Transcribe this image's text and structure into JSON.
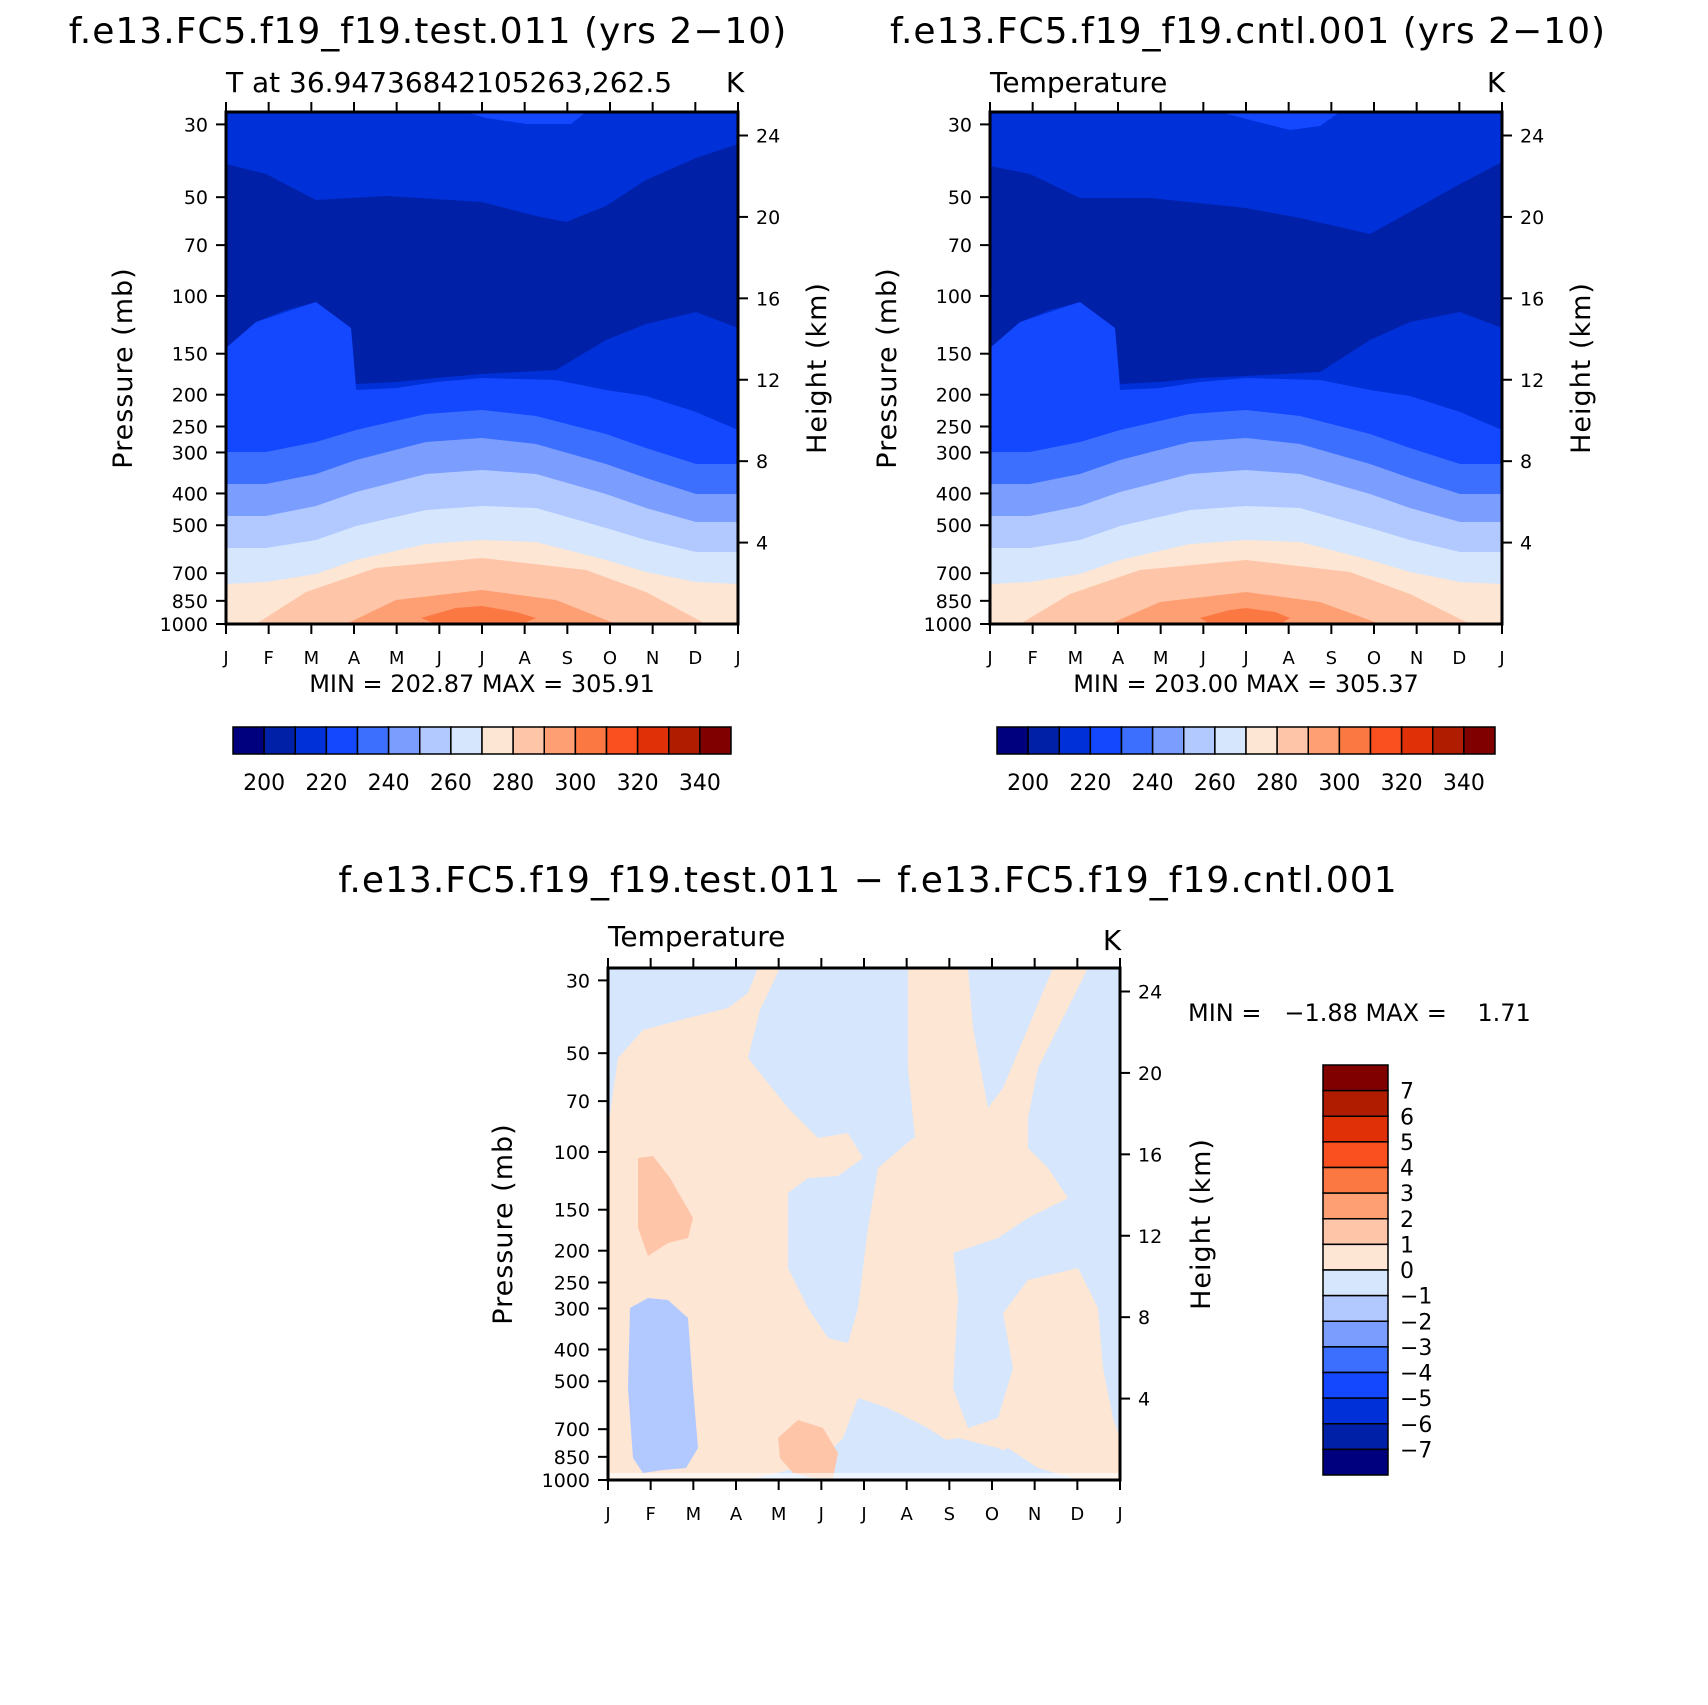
{
  "top_left": {
    "title": "f.e13.FC5.f19_f19.test.011 (yrs 2−10)",
    "subtitle": "T at 36.94736842105263,262.5",
    "units": "K",
    "stats": "MIN = 202.87 MAX = 305.91"
  },
  "top_right": {
    "title": "f.e13.FC5.f19_f19.cntl.001 (yrs 2−10)",
    "subtitle": "Temperature",
    "units": "K",
    "stats": "MIN = 203.00 MAX = 305.37"
  },
  "bottom": {
    "title": "f.e13.FC5.f19_f19.test.011 − f.e13.FC5.f19_f19.cntl.001",
    "subtitle": "Temperature",
    "units": "K",
    "stats": "MIN =   −1.88 MAX =    1.71"
  },
  "axes": {
    "ylabel_left": "Pressure (mb)",
    "ylabel_right": "Height (km)",
    "months": [
      "J",
      "F",
      "M",
      "A",
      "M",
      "J",
      "J",
      "A",
      "S",
      "O",
      "N",
      "D",
      "J"
    ],
    "pressure_ticks": [
      "30",
      "50",
      "70",
      "100",
      "150",
      "200",
      "250",
      "300",
      "400",
      "500",
      "700",
      "850",
      "1000"
    ],
    "height_ticks": [
      "24",
      "20",
      "16",
      "12",
      "8",
      "4"
    ]
  },
  "colorbar_abs": {
    "labels": [
      "200",
      "220",
      "240",
      "260",
      "280",
      "300",
      "320",
      "340"
    ],
    "colors": [
      "#00007f",
      "#0020a8",
      "#0030d8",
      "#1448ff",
      "#3c6ffe",
      "#7b9efe",
      "#b2c9ff",
      "#d5e6fd",
      "#fde6d4",
      "#fec5a8",
      "#fd9f72",
      "#fb7843",
      "#fa5020",
      "#e03008",
      "#b01c00",
      "#800000"
    ]
  },
  "colorbar_diff": {
    "labels": [
      "7",
      "6",
      "5",
      "4",
      "3",
      "2",
      "1",
      "0",
      "−1",
      "−2",
      "−3",
      "−4",
      "−5",
      "−6",
      "−7"
    ],
    "colors": [
      "#800000",
      "#b01c00",
      "#e03008",
      "#fa5020",
      "#fb7843",
      "#fd9f72",
      "#fec5a8",
      "#fde6d4",
      "#d5e6fd",
      "#b2c9ff",
      "#7b9efe",
      "#3c6ffe",
      "#1448ff",
      "#0030d8",
      "#0020a8",
      "#00007f"
    ]
  },
  "chart_data": [
    {
      "type": "heatmap",
      "panel": "test.011",
      "x": [
        "J",
        "F",
        "M",
        "A",
        "M",
        "J",
        "J",
        "A",
        "S",
        "O",
        "N",
        "D",
        "J"
      ],
      "y_pressure_mb": [
        30,
        50,
        70,
        100,
        150,
        200,
        250,
        300,
        400,
        500,
        700,
        850,
        1000
      ],
      "units": "K",
      "min": 202.87,
      "max": 305.91,
      "contour_levels": [
        200,
        210,
        220,
        230,
        240,
        250,
        260,
        270,
        280,
        290,
        300,
        310,
        320,
        330,
        340
      ]
    },
    {
      "type": "heatmap",
      "panel": "cntl.001",
      "x": [
        "J",
        "F",
        "M",
        "A",
        "M",
        "J",
        "J",
        "A",
        "S",
        "O",
        "N",
        "D",
        "J"
      ],
      "y_pressure_mb": [
        30,
        50,
        70,
        100,
        150,
        200,
        250,
        300,
        400,
        500,
        700,
        850,
        1000
      ],
      "units": "K",
      "min": 203.0,
      "max": 305.37,
      "contour_levels": [
        200,
        210,
        220,
        230,
        240,
        250,
        260,
        270,
        280,
        290,
        300,
        310,
        320,
        330,
        340
      ]
    },
    {
      "type": "heatmap",
      "panel": "test.011 - cntl.001",
      "x": [
        "J",
        "F",
        "M",
        "A",
        "M",
        "J",
        "J",
        "A",
        "S",
        "O",
        "N",
        "D",
        "J"
      ],
      "y_pressure_mb": [
        30,
        50,
        70,
        100,
        150,
        200,
        250,
        300,
        400,
        500,
        700,
        850,
        1000
      ],
      "units": "K",
      "min": -1.88,
      "max": 1.71,
      "contour_levels": [
        -7,
        -6,
        -5,
        -4,
        -3,
        -2,
        -1,
        0,
        1,
        2,
        3,
        4,
        5,
        6,
        7
      ]
    }
  ]
}
